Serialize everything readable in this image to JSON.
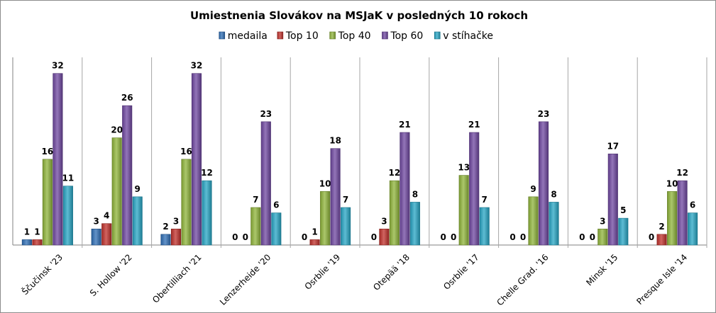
{
  "chart_data": {
    "type": "bar",
    "title": "Umiestnenia Slovákov na MSJaK v posledných 10 rokoch",
    "xlabel": "",
    "ylabel": "",
    "ylim": [
      0,
      35
    ],
    "grid": "vertical-category-separators",
    "legend_position": "top",
    "categories": [
      "Ščučinsk '23",
      "S. Hollow '22",
      "Obertilliach '21",
      "Lenzerheide '20",
      "Osrblie '19",
      "Otepää '18",
      "Osrblie '17",
      "Chelle Grad. '16",
      "Minsk '15",
      "Presque Isle '14"
    ],
    "series": [
      {
        "name": "medaila",
        "color": "#2e6db5",
        "values": [
          1,
          3,
          2,
          0,
          0,
          0,
          0,
          0,
          0,
          0
        ]
      },
      {
        "name": "Top 10",
        "color": "#c0302b",
        "values": [
          1,
          4,
          3,
          0,
          1,
          3,
          0,
          0,
          0,
          2
        ]
      },
      {
        "name": "Top 40",
        "color": "#8fb43a",
        "values": [
          16,
          20,
          16,
          7,
          10,
          12,
          13,
          9,
          3,
          10
        ]
      },
      {
        "name": "Top 60",
        "color": "#6f47a0",
        "values": [
          32,
          26,
          32,
          23,
          18,
          21,
          21,
          23,
          17,
          12
        ]
      },
      {
        "name": "v stíhačke",
        "color": "#27a5c4",
        "values": [
          11,
          9,
          12,
          6,
          7,
          8,
          7,
          8,
          5,
          6
        ]
      }
    ]
  }
}
